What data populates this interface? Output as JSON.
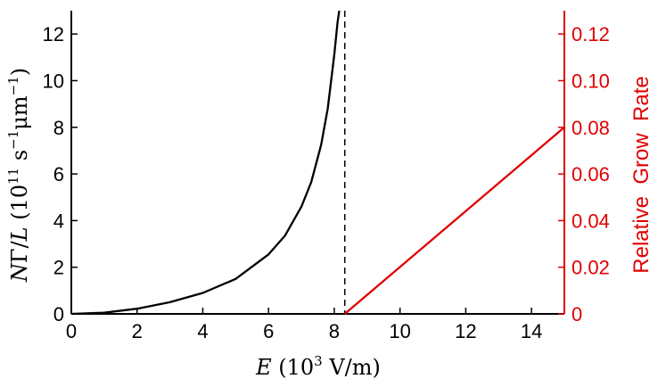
{
  "chart_data": {
    "type": "line",
    "xlabel": {
      "italic": "E",
      "main": " (10",
      "sup": "3",
      "rest": " V/m)"
    },
    "ylabel_left": {
      "prefix_italic": "N",
      "gamma": "Γ",
      "slash": "/",
      "suffix_italic": "L",
      "paren_open": " (10",
      "sup1": "11",
      "mid": " s",
      "sup2": "−1",
      "unit": "μm",
      "sup3": "−1",
      "paren_close": ")"
    },
    "ylabel_right": "Relative  Grow  Rate",
    "xlim": [
      0,
      15
    ],
    "ylim_left": [
      0,
      13
    ],
    "ylim_right": [
      0,
      0.13
    ],
    "xticks": [
      0,
      2,
      4,
      6,
      8,
      10,
      12,
      14
    ],
    "xtick_labels": [
      "0",
      "2",
      "4",
      "6",
      "8",
      "10",
      "12",
      "14"
    ],
    "yticks_left": [
      0,
      2,
      4,
      6,
      8,
      10,
      12
    ],
    "ytick_labels_left": [
      "0",
      "2",
      "4",
      "6",
      "8",
      "10",
      "12"
    ],
    "yticks_right": [
      0,
      0.02,
      0.04,
      0.06,
      0.08,
      0.1,
      0.12
    ],
    "ytick_labels_right": [
      "0",
      "0.02",
      "0.04",
      "0.06",
      "0.08",
      "0.10",
      "0.12"
    ],
    "critical_field": 8.32,
    "series": [
      {
        "axis": "left",
        "color": "#000000",
        "x": [
          0,
          1,
          2,
          3,
          4,
          5,
          6,
          6.5,
          7,
          7.3,
          7.6,
          7.8,
          8.0,
          8.1,
          8.15
        ],
        "y": [
          0,
          0.05,
          0.22,
          0.5,
          0.9,
          1.5,
          2.55,
          3.35,
          4.6,
          5.65,
          7.25,
          8.8,
          11.1,
          12.5,
          13.0
        ]
      },
      {
        "axis": "right",
        "color": "#e00000",
        "x": [
          8.32,
          15
        ],
        "y": [
          0,
          0.08
        ]
      }
    ],
    "colors": {
      "axis": "#000000",
      "right_axis": "#e00000"
    }
  }
}
